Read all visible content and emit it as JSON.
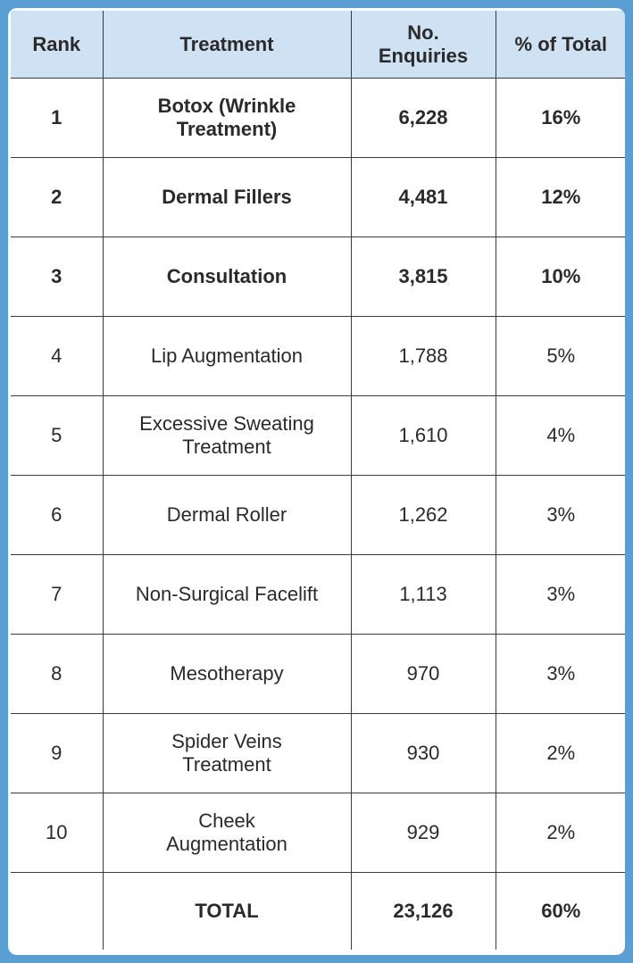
{
  "headers": {
    "rank": "Rank",
    "treatment": "Treatment",
    "enquiries_line1": "No.",
    "enquiries_line2": "Enquiries",
    "pct": "% of Total"
  },
  "rows": [
    {
      "rank": "1",
      "treatment": "Botox (Wrinkle Treatment)",
      "enquiries": "6,228",
      "pct": "16%"
    },
    {
      "rank": "2",
      "treatment": "Dermal Fillers",
      "enquiries": "4,481",
      "pct": "12%"
    },
    {
      "rank": "3",
      "treatment": "Consultation",
      "enquiries": "3,815",
      "pct": "10%"
    },
    {
      "rank": "4",
      "treatment": "Lip Augmentation",
      "enquiries": "1,788",
      "pct": "5%"
    },
    {
      "rank": "5",
      "treatment": "Excessive Sweating Treatment",
      "enquiries": "1,610",
      "pct": "4%"
    },
    {
      "rank": "6",
      "treatment": "Dermal Roller",
      "enquiries": "1,262",
      "pct": "3%"
    },
    {
      "rank": "7",
      "treatment": "Non-Surgical Facelift",
      "enquiries": "1,113",
      "pct": "3%"
    },
    {
      "rank": "8",
      "treatment": "Mesotherapy",
      "enquiries": "970",
      "pct": "3%"
    },
    {
      "rank": "9",
      "treatment": "Spider Veins Treatment",
      "enquiries": "930",
      "pct": "2%"
    },
    {
      "rank": "10",
      "treatment": "Cheek Augmentation",
      "enquiries": "929",
      "pct": "2%"
    }
  ],
  "total": {
    "rank": "",
    "label": "TOTAL",
    "enquiries": "23,126",
    "pct": "60%"
  },
  "colors": {
    "background": "#5a9fd4",
    "header_fill": "#cfe2f3",
    "panel": "#ffffff"
  }
}
